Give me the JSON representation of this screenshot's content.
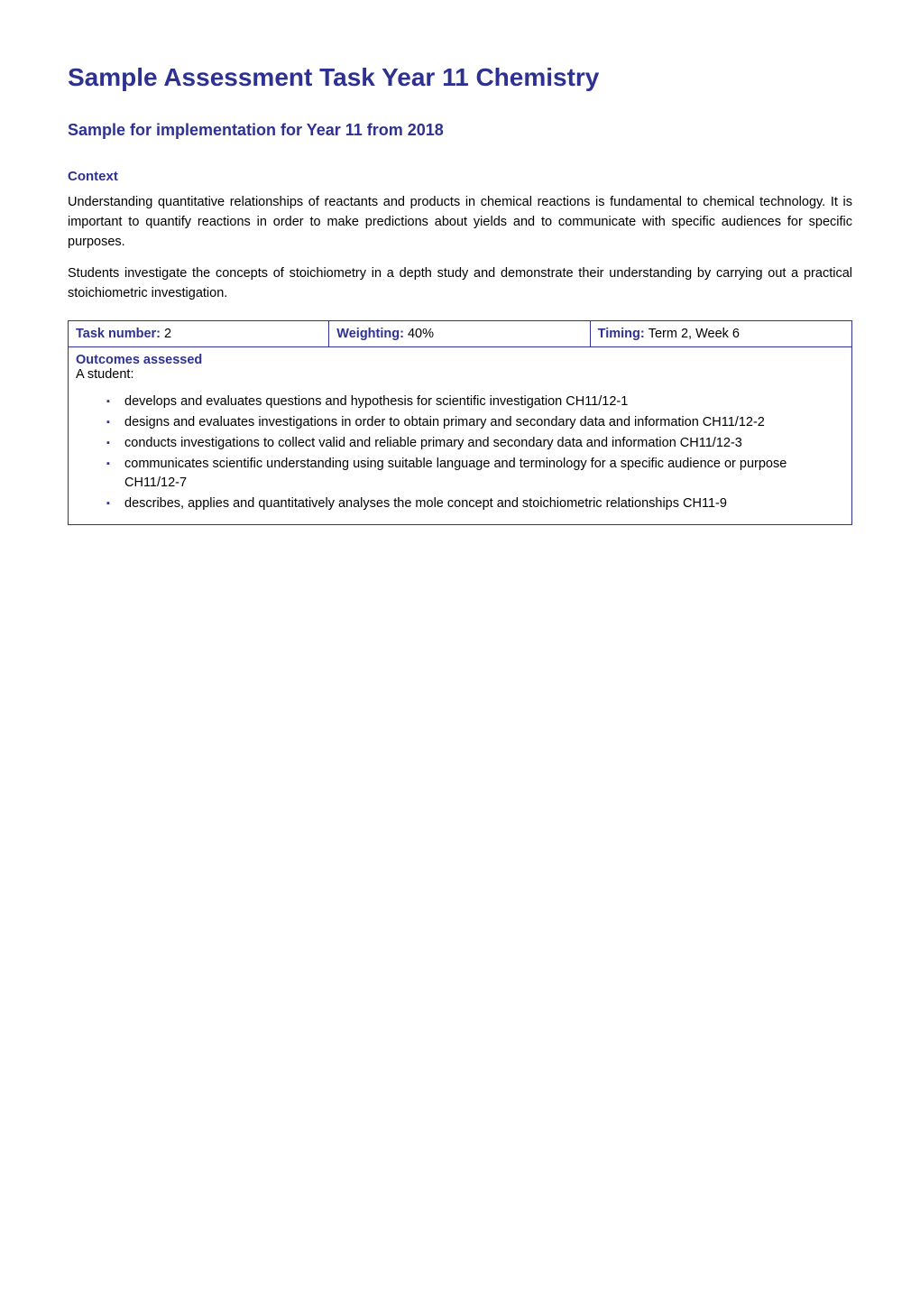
{
  "colors": {
    "primary": "#2e3192",
    "text": "#000000",
    "background": "#ffffff",
    "border": "#2e3192"
  },
  "typography": {
    "h1_size": 28,
    "h2_size": 18,
    "h3_size": 15,
    "body_size": 14.5,
    "font_family": "Arial, sans-serif"
  },
  "title": "Sample Assessment Task Year 11 Chemistry",
  "subtitle": "Sample for implementation for Year 11 from 2018",
  "context": {
    "heading": "Context",
    "paragraph1": "Understanding quantitative relationships of reactants and products in chemical reactions is fundamental to chemical technology. It is important to quantify reactions in order to make predictions about yields and to communicate with specific audiences for specific purposes.",
    "paragraph2": "Students investigate the concepts of stoichiometry in a depth study and demonstrate their understanding by carrying out a practical stoichiometric investigation."
  },
  "task_info": {
    "task_number_label": "Task number: ",
    "task_number_value": "2",
    "weighting_label": "Weighting: ",
    "weighting_value": "40%",
    "timing_label": "Timing: ",
    "timing_value": "Term 2, Week 6"
  },
  "outcomes": {
    "heading": "Outcomes assessed",
    "subheading": "A student:",
    "items": [
      "develops and evaluates questions and hypothesis for scientific investigation CH11/12-1",
      "designs and evaluates investigations in order to obtain primary and secondary data and information CH11/12-2",
      "conducts investigations to collect valid and reliable primary and secondary data and information CH11/12-3",
      "communicates scientific understanding using suitable language and terminology for a specific audience or purpose CH11/12-7",
      "describes, applies and quantitatively analyses the mole concept and stoichiometric relationships CH11-9"
    ]
  }
}
